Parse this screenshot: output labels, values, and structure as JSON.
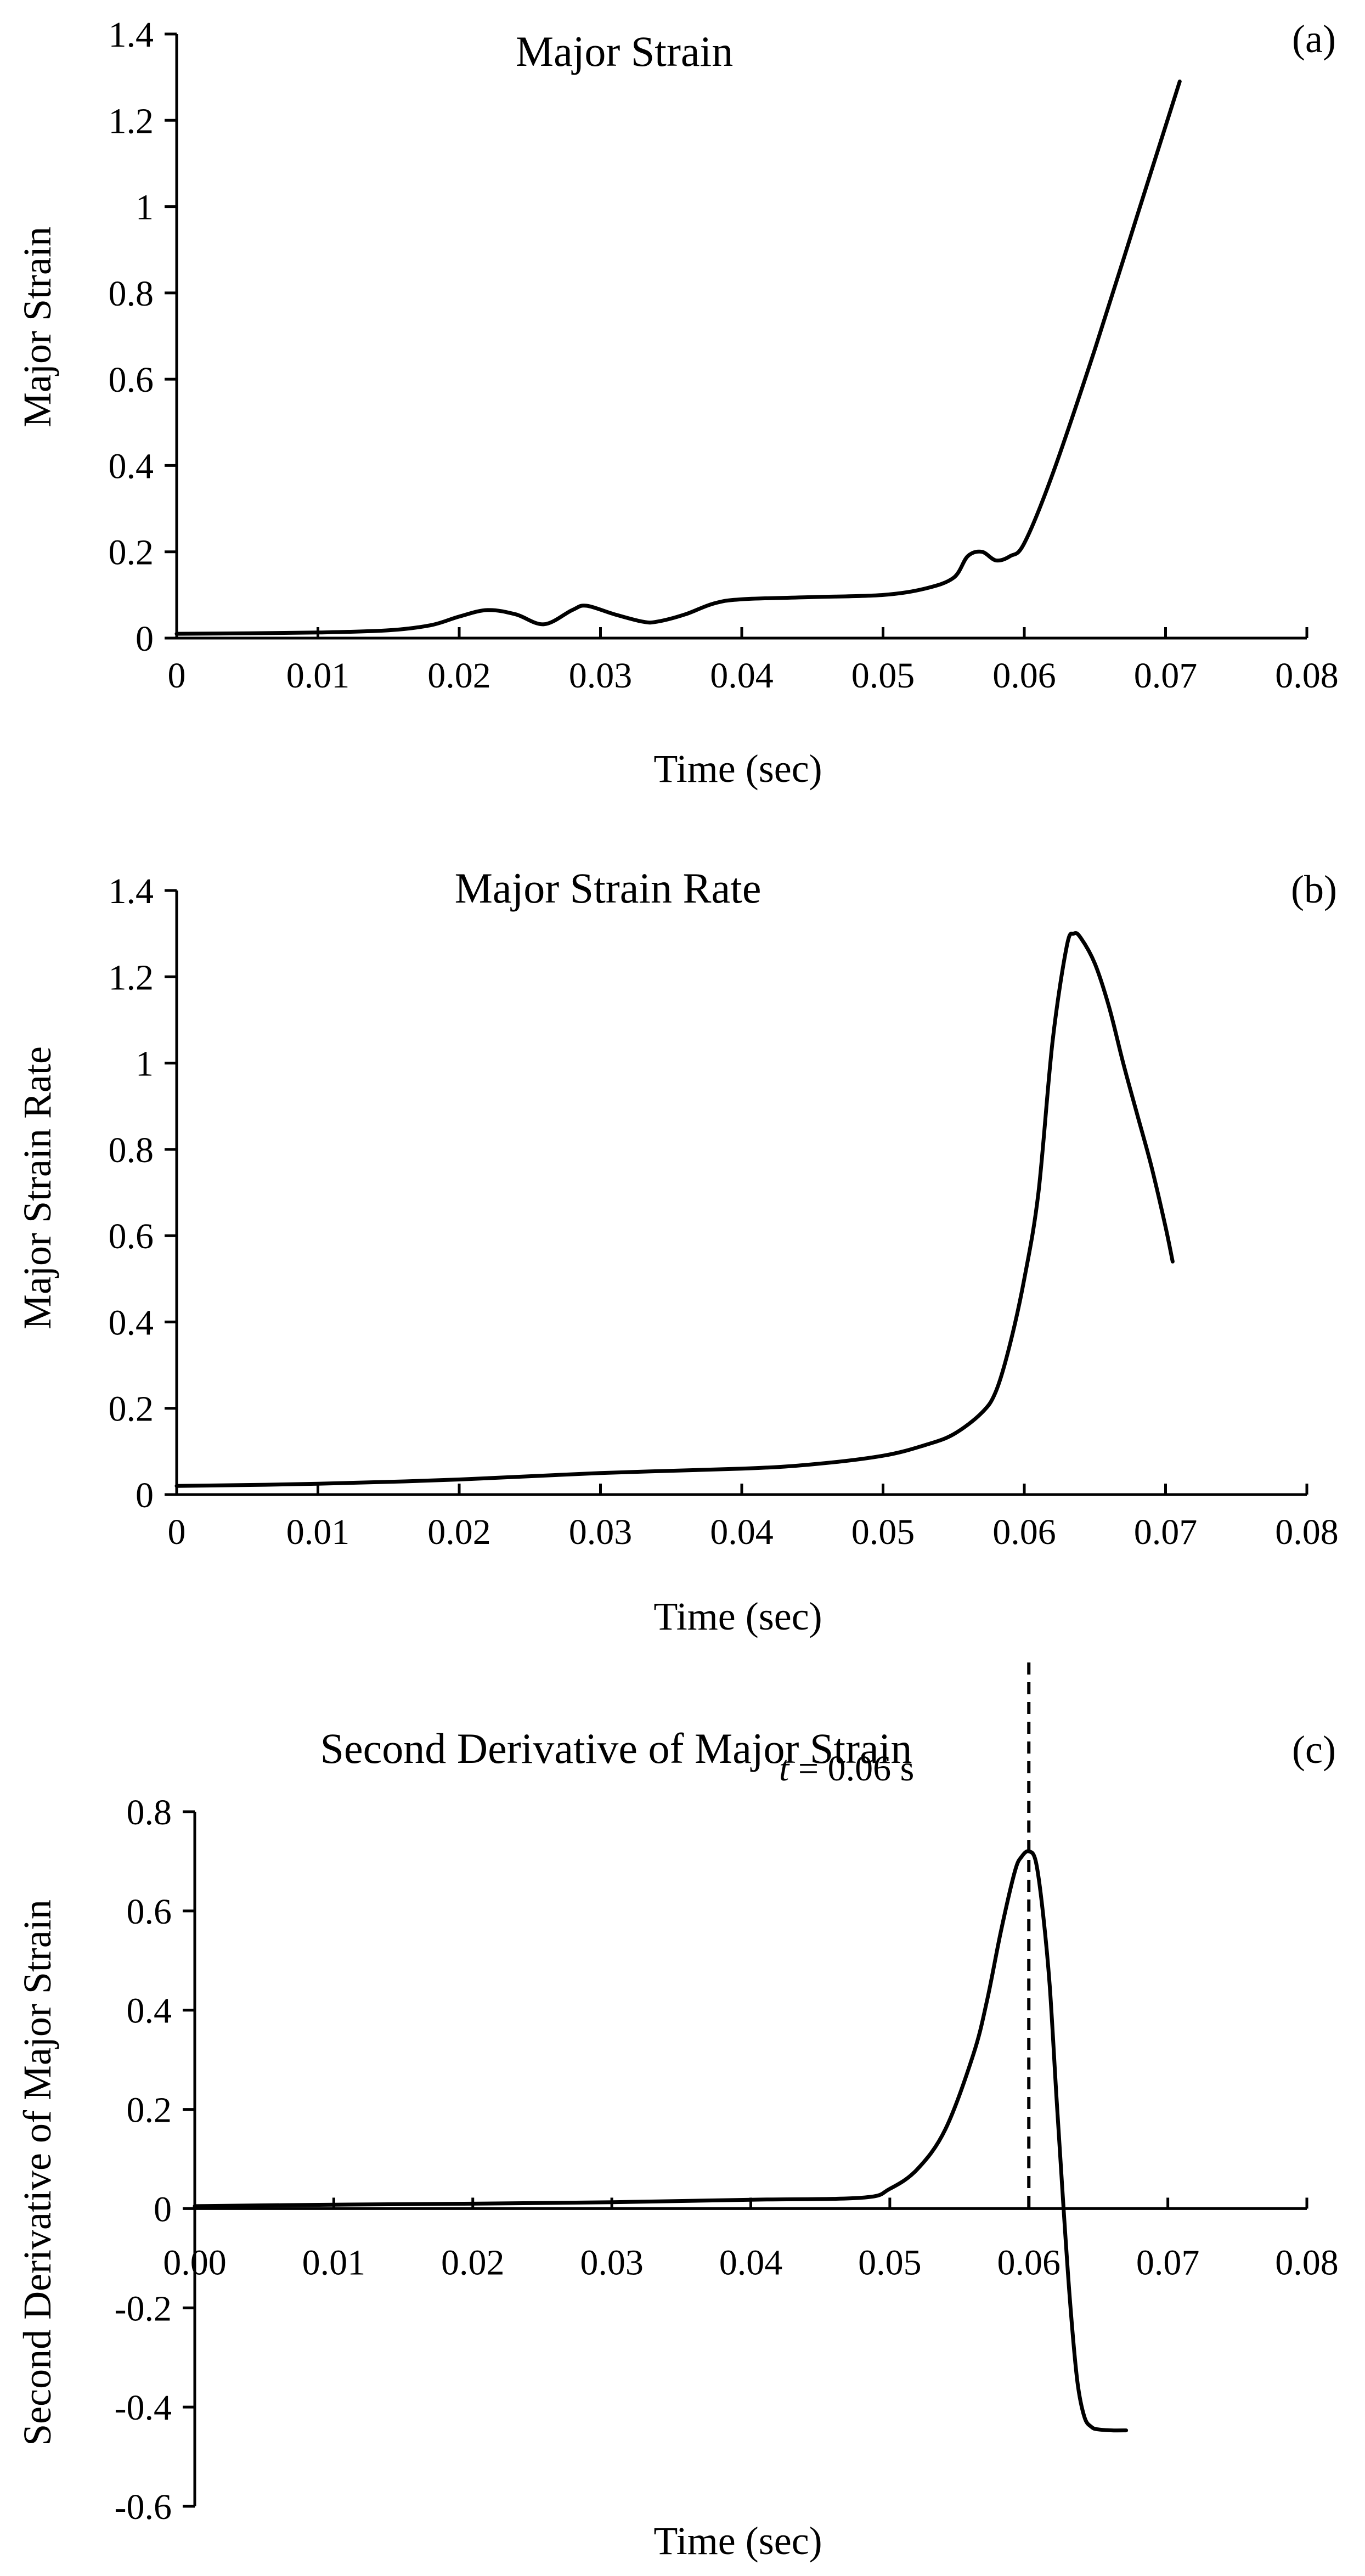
{
  "chart_data": [
    {
      "type": "line",
      "panel_label": "(a)",
      "title": "Major Strain",
      "xlabel": "Time (sec)",
      "ylabel": "Major Strain",
      "xlim": [
        0,
        0.08
      ],
      "ylim": [
        0,
        1.4
      ],
      "xticks": [
        0,
        0.01,
        0.02,
        0.03,
        0.04,
        0.05,
        0.06,
        0.07,
        0.08
      ],
      "xtick_labels": [
        "0",
        "0.01",
        "0.02",
        "0.03",
        "0.04",
        "0.05",
        "0.06",
        "0.07",
        "0.08"
      ],
      "yticks": [
        0,
        0.2,
        0.4,
        0.6,
        0.8,
        1,
        1.2,
        1.4
      ],
      "ytick_labels": [
        "0",
        "0.2",
        "0.4",
        "0.6",
        "0.8",
        "1",
        "1.2",
        "1.4"
      ],
      "series": [
        {
          "name": "Major Strain",
          "x": [
            0,
            0.005,
            0.01,
            0.015,
            0.018,
            0.02,
            0.022,
            0.024,
            0.026,
            0.028,
            0.029,
            0.031,
            0.033,
            0.034,
            0.036,
            0.038,
            0.04,
            0.045,
            0.05,
            0.053,
            0.055,
            0.056,
            0.057,
            0.058,
            0.059,
            0.06,
            0.062,
            0.065,
            0.068,
            0.071
          ],
          "y": [
            0.01,
            0.011,
            0.013,
            0.018,
            0.03,
            0.05,
            0.065,
            0.055,
            0.032,
            0.065,
            0.075,
            0.055,
            0.038,
            0.038,
            0.055,
            0.08,
            0.09,
            0.095,
            0.1,
            0.115,
            0.14,
            0.19,
            0.2,
            0.18,
            0.19,
            0.22,
            0.38,
            0.67,
            0.98,
            1.29
          ]
        }
      ]
    },
    {
      "type": "line",
      "panel_label": "(b)",
      "title": "Major Strain Rate",
      "xlabel": "Time (sec)",
      "ylabel": "Major Strain Rate",
      "xlim": [
        0,
        0.08
      ],
      "ylim": [
        0,
        1.4
      ],
      "xticks": [
        0,
        0.01,
        0.02,
        0.03,
        0.04,
        0.05,
        0.06,
        0.07,
        0.08
      ],
      "xtick_labels": [
        "0",
        "0.01",
        "0.02",
        "0.03",
        "0.04",
        "0.05",
        "0.06",
        "0.07",
        "0.08"
      ],
      "yticks": [
        0,
        0.2,
        0.4,
        0.6,
        0.8,
        1,
        1.2,
        1.4
      ],
      "ytick_labels": [
        "0",
        "0.2",
        "0.4",
        "0.6",
        "0.8",
        "1",
        "1.2",
        "1.4"
      ],
      "series": [
        {
          "name": "Major Strain Rate",
          "x": [
            0,
            0.01,
            0.02,
            0.03,
            0.04,
            0.045,
            0.05,
            0.053,
            0.055,
            0.057,
            0.058,
            0.059,
            0.06,
            0.061,
            0.062,
            0.063,
            0.0635,
            0.064,
            0.065,
            0.066,
            0.067,
            0.068,
            0.069,
            0.07,
            0.0705
          ],
          "y": [
            0.02,
            0.025,
            0.035,
            0.05,
            0.06,
            0.07,
            0.09,
            0.115,
            0.14,
            0.19,
            0.24,
            0.35,
            0.5,
            0.7,
            1.05,
            1.27,
            1.3,
            1.29,
            1.23,
            1.13,
            1.0,
            0.88,
            0.76,
            0.62,
            0.54
          ]
        }
      ]
    },
    {
      "type": "line",
      "panel_label": "(c)",
      "title": "Second Derivative of Major Strain",
      "xlabel": "Time (sec)",
      "ylabel": "Second Derivative of Major Strain",
      "xlim": [
        0,
        0.08
      ],
      "ylim": [
        -0.6,
        0.8
      ],
      "xticks": [
        0,
        0.01,
        0.02,
        0.03,
        0.04,
        0.05,
        0.06,
        0.07,
        0.08
      ],
      "xtick_labels": [
        "0.00",
        "0.01",
        "0.02",
        "0.03",
        "0.04",
        "0.05",
        "0.06",
        "0.07",
        "0.08"
      ],
      "yticks": [
        -0.6,
        -0.4,
        -0.2,
        0,
        0.2,
        0.4,
        0.6,
        0.8
      ],
      "ytick_labels": [
        "-0.6",
        "-0.4",
        "-0.2",
        "0",
        "0.2",
        "0.4",
        "0.6",
        "0.8"
      ],
      "annotation": {
        "text_var": "t",
        "text_rest": " = 0.06 s",
        "x": 0.06
      },
      "series": [
        {
          "name": "Second Derivative of Major Strain",
          "x": [
            0,
            0.01,
            0.02,
            0.03,
            0.04,
            0.048,
            0.05,
            0.052,
            0.054,
            0.056,
            0.057,
            0.058,
            0.059,
            0.0595,
            0.06,
            0.0605,
            0.061,
            0.0615,
            0.062,
            0.0625,
            0.063,
            0.0635,
            0.064,
            0.0645,
            0.065,
            0.066,
            0.067
          ],
          "y": [
            0.005,
            0.008,
            0.01,
            0.013,
            0.018,
            0.022,
            0.04,
            0.08,
            0.16,
            0.31,
            0.42,
            0.56,
            0.68,
            0.71,
            0.72,
            0.7,
            0.6,
            0.45,
            0.22,
            0.0,
            -0.2,
            -0.35,
            -0.42,
            -0.44,
            -0.445,
            -0.447,
            -0.447
          ]
        }
      ]
    }
  ]
}
